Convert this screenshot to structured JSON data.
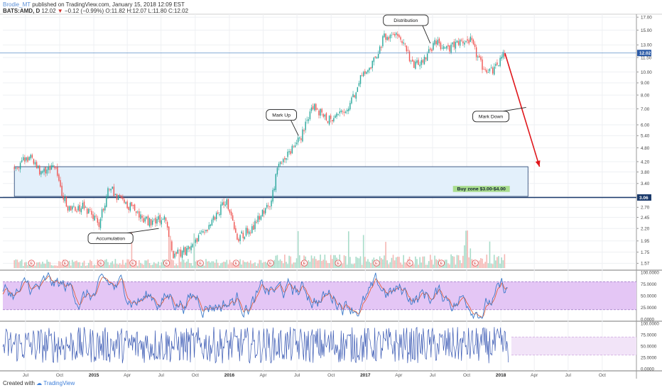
{
  "header": {
    "author": "Brodie_MT",
    "published": "published on TradingView.com, January 15, 2018 12:09 EST",
    "symbol_line": "BATS:AMD, D",
    "last": "12.02",
    "change": "−0.12 (−0.99%)",
    "ohlc": "O:11.82 H:12.07 L:11.80 C:12.02"
  },
  "footer": {
    "created_with": "Created with",
    "brand": "TradingView"
  },
  "colors": {
    "up": "#26a69a",
    "down": "#ef5350",
    "zone_fill": "#e3f0fb",
    "zone_border": "#1b3a6b",
    "price_line": "#5c8ec6",
    "arrow": "#e0161b",
    "stoch_fill": "#e4c6f5",
    "stoch_k": "#3a79c9",
    "stoch_d": "#e0562b",
    "wave": "#3b5ab4",
    "band_fill": "#f2e4f8"
  },
  "chart_data": [
    {
      "type": "candlestick",
      "panel": "price",
      "scale": "log",
      "ylim": [
        1.5,
        17.5
      ],
      "y_ticks": [
        "17.00",
        "15.00",
        "13.00",
        "11.50",
        "10.00",
        "9.00",
        "8.00",
        "7.00",
        "6.00",
        "5.40",
        "4.80",
        "4.20",
        "3.80",
        "3.40",
        "3.00",
        "2.70",
        "2.45",
        "2.20",
        "1.95",
        "1.75",
        "1.57"
      ],
      "x_ticks": [
        "Jul",
        "Oct",
        "2015",
        "Apr",
        "Jul",
        "Oct",
        "2016",
        "Apr",
        "Jul",
        "Oct",
        "2017",
        "Apr",
        "Jul",
        "Oct",
        "2018",
        "Apr",
        "Jul",
        "Oct"
      ],
      "price_path": [
        [
          "2014-06-01",
          4.0
        ],
        [
          "2014-07-15",
          4.4
        ],
        [
          "2014-08-10",
          3.8
        ],
        [
          "2014-09-15",
          4.1
        ],
        [
          "2014-10-20",
          2.7
        ],
        [
          "2014-12-10",
          2.7
        ],
        [
          "2015-01-15",
          2.3
        ],
        [
          "2015-02-10",
          3.3
        ],
        [
          "2015-03-20",
          2.8
        ],
        [
          "2015-04-20",
          2.7
        ],
        [
          "2015-05-10",
          2.4
        ],
        [
          "2015-06-10",
          2.3
        ],
        [
          "2015-07-10",
          2.5
        ],
        [
          "2015-08-01",
          1.7
        ],
        [
          "2015-09-15",
          1.8
        ],
        [
          "2015-11-01",
          2.2
        ],
        [
          "2015-12-25",
          2.9
        ],
        [
          "2016-01-20",
          2.0
        ],
        [
          "2016-03-01",
          2.2
        ],
        [
          "2016-04-20",
          2.8
        ],
        [
          "2016-05-10",
          3.9
        ],
        [
          "2016-06-01",
          4.5
        ],
        [
          "2016-07-10",
          5.2
        ],
        [
          "2016-08-10",
          7.3
        ],
        [
          "2016-09-20",
          6.3
        ],
        [
          "2016-11-10",
          6.7
        ],
        [
          "2016-12-20",
          9.4
        ],
        [
          "2017-01-20",
          10.8
        ],
        [
          "2017-02-20",
          13.9
        ],
        [
          "2017-03-20",
          14.5
        ],
        [
          "2017-04-15",
          13.2
        ],
        [
          "2017-05-10",
          10.4
        ],
        [
          "2017-06-10",
          11.5
        ],
        [
          "2017-07-10",
          13.4
        ],
        [
          "2017-08-10",
          12.4
        ],
        [
          "2017-09-10",
          13.4
        ],
        [
          "2017-10-10",
          13.6
        ],
        [
          "2017-11-10",
          10.6
        ],
        [
          "2017-12-10",
          10.0
        ],
        [
          "2018-01-12",
          12.0
        ]
      ],
      "last_price": "12.02",
      "zone_label_price": "3.06",
      "buy_zone": {
        "low": 3.0,
        "high": 4.0,
        "start": "2014-06-01",
        "end": "2018-03-15",
        "label": "Buy zone $3.00-$4.00"
      },
      "projection": {
        "from": [
          "2018-01-12",
          12.0
        ],
        "to": [
          "2018-04-15",
          4.0
        ]
      },
      "earnings_marker": "E",
      "earnings_dates": [
        "2014-07-17",
        "2014-10-16",
        "2015-01-20",
        "2015-04-16",
        "2015-07-16",
        "2015-10-15",
        "2016-01-19",
        "2016-04-21",
        "2016-07-21",
        "2016-10-20",
        "2017-01-31",
        "2017-05-01",
        "2017-07-25",
        "2017-10-24"
      ],
      "annotations": [
        {
          "text": "Accumulation",
          "date": "2015-02-15",
          "price": 2.0,
          "pointer": [
            "2015-06-25",
            2.2
          ]
        },
        {
          "text": "Mark Up",
          "date": "2016-05-20",
          "price": 6.6,
          "pointer": [
            "2016-07-05",
            5.4
          ]
        },
        {
          "text": "Distribution",
          "date": "2017-04-20",
          "price": 16.5,
          "pointer": [
            "2017-06-25",
            13.2
          ]
        },
        {
          "text": "Mark Down",
          "date": "2017-12-05",
          "price": 6.5,
          "pointer": [
            "2018-03-10",
            7.1
          ]
        }
      ]
    },
    {
      "type": "line",
      "panel": "stochastic",
      "ylim": [
        0,
        100
      ],
      "y_ticks": [
        "100.0000",
        "75.0000",
        "50.0000",
        "25.0000",
        "0.0000"
      ],
      "band": [
        20,
        80
      ],
      "series": [
        {
          "values_range": [
            0,
            100
          ]
        },
        {
          "values_range": [
            0,
            100
          ]
        }
      ]
    },
    {
      "type": "line",
      "panel": "oscillator",
      "ylim": [
        0,
        100
      ],
      "y_ticks": [
        "100.0000",
        "75.0000",
        "50.0000",
        "25.0000",
        "0.0000"
      ],
      "band": [
        30,
        70
      ],
      "series": [
        {
          "values_range": [
            10,
            100
          ]
        }
      ]
    }
  ]
}
